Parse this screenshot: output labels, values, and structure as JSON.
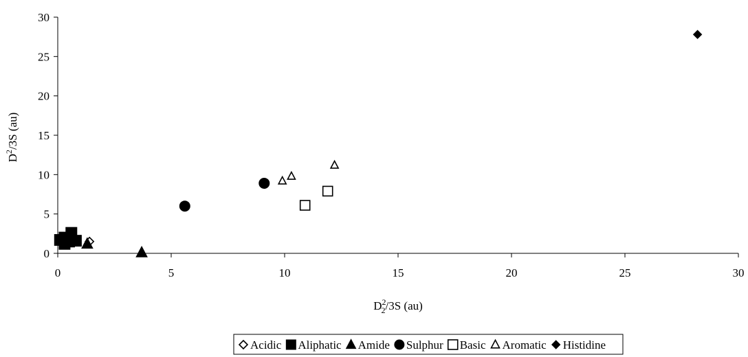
{
  "chart_data": {
    "type": "scatter",
    "title": "",
    "xlabel": {
      "base": "D",
      "sup": "2",
      "sub": "2",
      "rest": "/3S (au)"
    },
    "ylabel": {
      "base": "D",
      "sup": "2",
      "rest": "/3S (au)"
    },
    "xlim": [
      0,
      30
    ],
    "ylim": [
      0,
      30
    ],
    "xticks": [
      0,
      5,
      10,
      15,
      20,
      25,
      30
    ],
    "yticks": [
      0,
      5,
      10,
      15,
      20,
      25,
      30
    ],
    "grid": false,
    "legend_position": "bottom",
    "series": [
      {
        "name": "Acidic",
        "marker": "diamond-open",
        "points": [
          [
            1.4,
            1.5
          ]
        ]
      },
      {
        "name": "Aliphatic",
        "marker": "square-filled",
        "points": [
          [
            0.1,
            1.7
          ],
          [
            0.3,
            2.0
          ],
          [
            0.3,
            1.2
          ],
          [
            0.6,
            2.6
          ],
          [
            0.8,
            1.6
          ],
          [
            0.5,
            1.5
          ]
        ]
      },
      {
        "name": "Amide",
        "marker": "triangle-filled",
        "points": [
          [
            1.3,
            1.2
          ],
          [
            3.7,
            0.1
          ]
        ]
      },
      {
        "name": "Sulphur",
        "marker": "circle-filled",
        "points": [
          [
            5.6,
            6.0
          ],
          [
            9.1,
            8.9
          ]
        ]
      },
      {
        "name": "Basic",
        "marker": "square-open",
        "points": [
          [
            10.9,
            6.1
          ],
          [
            11.9,
            7.9
          ]
        ]
      },
      {
        "name": "Aromatic",
        "marker": "triangle-open",
        "points": [
          [
            9.9,
            9.2
          ],
          [
            10.3,
            9.8
          ],
          [
            12.2,
            11.2
          ]
        ]
      },
      {
        "name": "Histidine",
        "marker": "diamond-filled",
        "points": [
          [
            28.2,
            27.8
          ]
        ]
      }
    ]
  }
}
